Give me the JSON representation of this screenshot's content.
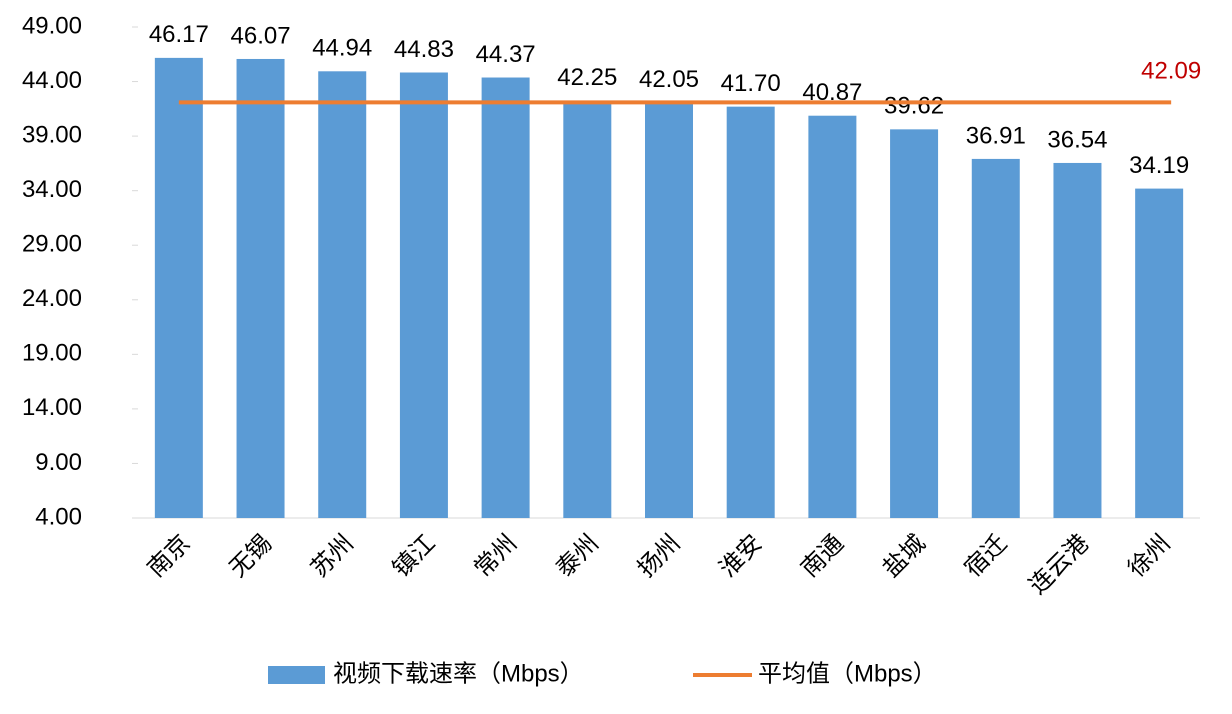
{
  "chart_data": {
    "type": "bar",
    "categories": [
      "南京",
      "无锡",
      "苏州",
      "镇江",
      "常州",
      "泰州",
      "扬州",
      "淮安",
      "南通",
      "盐城",
      "宿迁",
      "连云港",
      "徐州"
    ],
    "series": [
      {
        "name": "视频下载速率（Mbps）",
        "type": "bar",
        "color": "#5b9bd5",
        "values": [
          46.17,
          46.07,
          44.94,
          44.83,
          44.37,
          42.25,
          42.05,
          41.7,
          40.87,
          39.62,
          36.91,
          36.54,
          34.19
        ],
        "value_labels": [
          "46.17",
          "46.07",
          "44.94",
          "44.83",
          "44.37",
          "42.25",
          "42.05",
          "41.70",
          "40.87",
          "39.62",
          "36.91",
          "36.54",
          "34.19"
        ]
      },
      {
        "name": "平均值（Mbps）",
        "type": "line",
        "color": "#ed7d31",
        "value": 42.09,
        "label_color": "#c00000"
      }
    ],
    "ylim": [
      4,
      49
    ],
    "yticks": [
      {
        "value": 4,
        "label": "4.00"
      },
      {
        "value": 9,
        "label": "9.00"
      },
      {
        "value": 14,
        "label": "14.00"
      },
      {
        "value": 19,
        "label": "19.00"
      },
      {
        "value": 24,
        "label": "24.00"
      },
      {
        "value": 29,
        "label": "29.00"
      },
      {
        "value": 34,
        "label": "34.00"
      },
      {
        "value": 39,
        "label": "39.00"
      },
      {
        "value": 44,
        "label": "44.00"
      },
      {
        "value": 49,
        "label": "49.00"
      }
    ],
    "legend": "bottom"
  }
}
